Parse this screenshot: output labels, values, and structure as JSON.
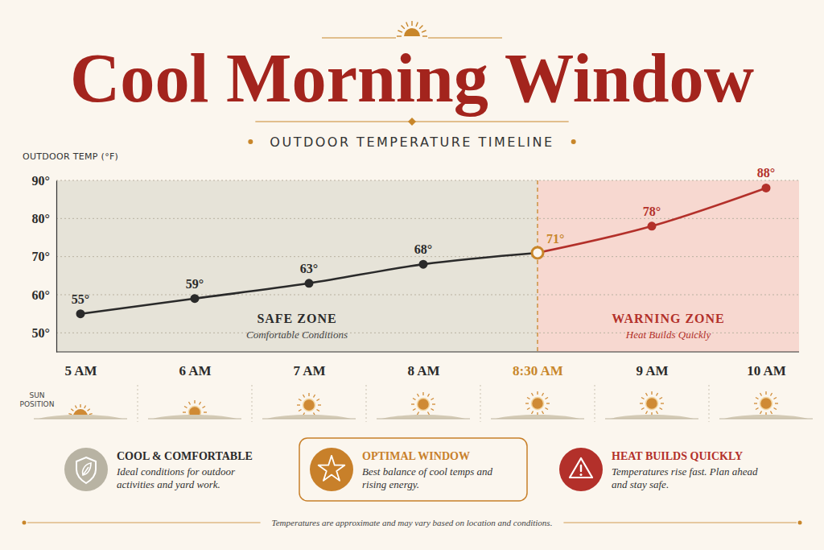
{
  "chart_data": {
    "type": "line",
    "title": "Cool Morning Window",
    "subtitle": "OUTDOOR TEMPERATURE TIMELINE",
    "y_label": "OUTDOOR TEMP (°F)",
    "categories": [
      "5 AM",
      "6 AM",
      "7 AM",
      "8 AM",
      "8:30 AM",
      "9 AM",
      "10 AM"
    ],
    "series": [
      {
        "values": [
          55,
          59,
          63,
          68,
          71,
          78,
          88
        ],
        "value_labels": [
          "55°",
          "59°",
          "63°",
          "68°",
          "71°",
          "78°",
          "88°"
        ],
        "colors": [
          "#2a2a2a",
          "#2a2a2a",
          "#2a2a2a",
          "#2a2a2a",
          "#c8862a",
          "#b3302a",
          "#b3302a"
        ],
        "marker": "circle",
        "line_style": "solid"
      }
    ],
    "ylim": [
      45,
      90
    ],
    "yticks": [
      {
        "value": 50,
        "label": "50°"
      },
      {
        "value": 60,
        "label": "60°"
      },
      {
        "value": 70,
        "label": "70°"
      },
      {
        "value": 80,
        "label": "80°"
      },
      {
        "value": 90,
        "label": "90°"
      }
    ],
    "grid": true,
    "data_labels": true,
    "zones": [
      {
        "label": "SAFE ZONE",
        "note": "Comfortable Conditions",
        "color": "#e6e3d8"
      },
      {
        "label": "WARNING ZONE",
        "note": "Heat Builds Quickly",
        "color": "#f7d8d0"
      }
    ],
    "zone_split": "8:30 AM",
    "sun_label": "SUN POSITION"
  },
  "cards": [
    {
      "title": "COOL & COMFORTABLE",
      "text": "Ideal conditions for outdoor activities and yard work.",
      "color": "#b8b3a3"
    },
    {
      "title": "OPTIMAL WINDOW",
      "text": "Best balance of cool temps and rising energy.",
      "color": "#c8802a"
    },
    {
      "title": "HEAT BUILDS QUICKLY",
      "text": "Temperatures rise fast. Plan ahead and stay safe.",
      "color": "#b3302a"
    }
  ],
  "footnote": "Temperatures are approximate and may vary based on location and conditions."
}
